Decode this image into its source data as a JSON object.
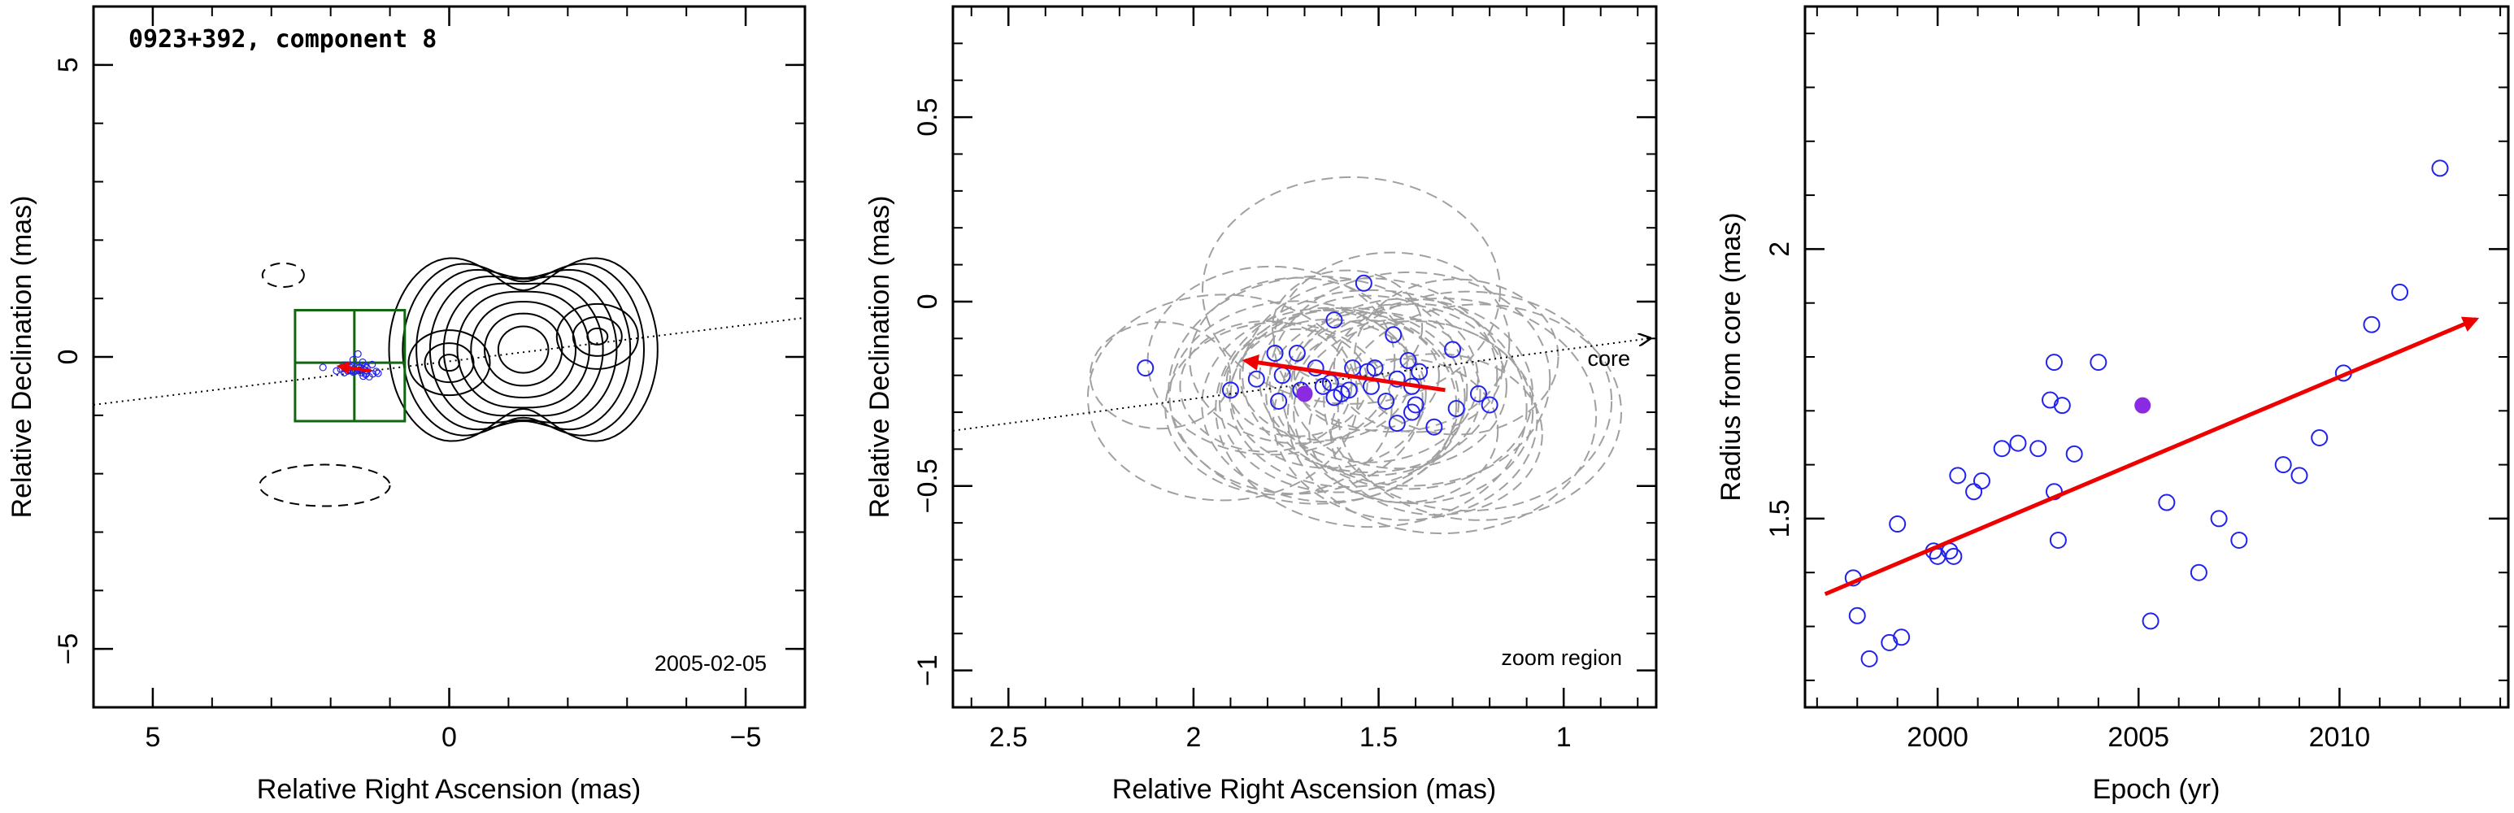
{
  "chart_data": [
    {
      "type": "scatter",
      "panel": "overview",
      "title": "0923+392, component 8",
      "date_label": "2005-02-05",
      "xlabel": "Relative Right Ascension (mas)",
      "ylabel": "Relative Declination (mas)",
      "xlim": [
        6,
        -6
      ],
      "ylim": [
        -6,
        6
      ],
      "xticks": [
        5,
        0,
        -5
      ],
      "yticks": [
        5,
        0,
        -5
      ],
      "xtick_labels": [
        "5",
        "0",
        "−5"
      ],
      "ytick_labels": [
        "5",
        "0",
        "−5"
      ],
      "core_line": {
        "points": [
          [
            6,
            -0.82
          ],
          [
            -6,
            0.67
          ]
        ],
        "style": "dotted"
      },
      "contours": {
        "peak_a": [
          0.0,
          -0.1
        ],
        "peak_b": [
          -2.5,
          0.35
        ],
        "levels": 9,
        "negative_contours": [
          {
            "center": [
              2.8,
              1.4
            ],
            "radius_x": 0.35,
            "radius_y": 0.2
          },
          {
            "center": [
              2.1,
              -2.2
            ],
            "radius_x": 1.1,
            "radius_y": 0.35
          }
        ]
      },
      "zoom_box": {
        "x": [
          2.6,
          0.75
        ],
        "y": [
          -1.1,
          0.8
        ]
      },
      "points_center": [
        1.6,
        -0.22
      ],
      "arrow": {
        "from": [
          1.32,
          -0.24
        ],
        "to": [
          1.86,
          -0.16
        ]
      }
    },
    {
      "type": "scatter",
      "panel": "zoom",
      "xlabel": "Relative Right Ascension (mas)",
      "ylabel": "Relative Declination (mas)",
      "xlim": [
        2.65,
        0.75
      ],
      "ylim": [
        -1.1,
        0.8
      ],
      "xticks": [
        2.5,
        2,
        1.5,
        1
      ],
      "yticks": [
        0.5,
        0,
        -0.5,
        -1
      ],
      "xtick_labels": [
        "2.5",
        "2",
        "1.5",
        "1"
      ],
      "ytick_labels": [
        "0.5",
        "0",
        "−0.5",
        "−1"
      ],
      "annotations": {
        "core": "core",
        "zoom": "zoom region"
      },
      "core_line": {
        "from": [
          2.65,
          -0.35
        ],
        "to": [
          0.77,
          -0.1
        ],
        "style": "dotted"
      },
      "points": [
        [
          2.13,
          -0.18
        ],
        [
          1.54,
          0.05
        ],
        [
          1.62,
          -0.05
        ],
        [
          1.46,
          -0.09
        ],
        [
          1.3,
          -0.13
        ],
        [
          1.72,
          -0.14
        ],
        [
          1.78,
          -0.14
        ],
        [
          1.42,
          -0.16
        ],
        [
          1.51,
          -0.18
        ],
        [
          1.53,
          -0.19
        ],
        [
          1.57,
          -0.18
        ],
        [
          1.67,
          -0.18
        ],
        [
          1.39,
          -0.19
        ],
        [
          1.76,
          -0.2
        ],
        [
          1.83,
          -0.21
        ],
        [
          1.45,
          -0.21
        ],
        [
          1.63,
          -0.22
        ],
        [
          1.52,
          -0.23
        ],
        [
          1.41,
          -0.23
        ],
        [
          1.65,
          -0.23
        ],
        [
          1.9,
          -0.24
        ],
        [
          1.58,
          -0.24
        ],
        [
          1.71,
          -0.24
        ],
        [
          1.6,
          -0.25
        ],
        [
          1.23,
          -0.25
        ],
        [
          1.62,
          -0.26
        ],
        [
          1.77,
          -0.27
        ],
        [
          1.48,
          -0.27
        ],
        [
          1.2,
          -0.28
        ],
        [
          1.4,
          -0.28
        ],
        [
          1.29,
          -0.29
        ],
        [
          1.41,
          -0.3
        ],
        [
          1.45,
          -0.33
        ],
        [
          1.35,
          -0.34
        ]
      ],
      "highlight_point": [
        1.7,
        -0.25
      ],
      "arrow": {
        "from": [
          1.32,
          -0.24
        ],
        "to": [
          1.86,
          -0.16
        ]
      },
      "error_ellipses": 34
    },
    {
      "type": "scatter",
      "panel": "radius_vs_epoch",
      "xlabel": "Epoch (yr)",
      "ylabel": "Radius from core (mas)",
      "xlim": [
        1996.7,
        2014.2
      ],
      "ylim": [
        1.15,
        2.45
      ],
      "xticks": [
        2000,
        2005,
        2010
      ],
      "yticks": [
        1.5,
        2
      ],
      "xtick_labels": [
        "2000",
        "2005",
        "2010"
      ],
      "ytick_labels": [
        "1.5",
        "2"
      ],
      "x": [
        1997.9,
        1998.0,
        1998.3,
        1998.8,
        1999.0,
        1999.1,
        1999.9,
        2000.0,
        2000.3,
        2000.4,
        2000.5,
        2000.9,
        2001.1,
        2001.6,
        2002.0,
        2002.5,
        2002.8,
        2002.9,
        2002.9,
        2003.0,
        2003.1,
        2003.4,
        2004.0,
        2005.3,
        2005.7,
        2006.5,
        2007.0,
        2007.5,
        2008.6,
        2009.0,
        2009.5,
        2010.1,
        2010.8,
        2011.5,
        2012.5
      ],
      "y": [
        1.39,
        1.32,
        1.24,
        1.27,
        1.49,
        1.28,
        1.44,
        1.43,
        1.44,
        1.43,
        1.58,
        1.55,
        1.57,
        1.63,
        1.64,
        1.63,
        1.72,
        1.79,
        1.55,
        1.46,
        1.71,
        1.62,
        1.79,
        1.31,
        1.53,
        1.4,
        1.5,
        1.46,
        1.6,
        1.58,
        1.65,
        1.77,
        1.86,
        1.92,
        2.15
      ],
      "highlight_point": [
        2005.1,
        1.71
      ],
      "fit_arrow": {
        "from": [
          1997.2,
          1.36
        ],
        "to": [
          2013.4,
          1.87
        ]
      }
    }
  ],
  "colors": {
    "points": "#2222ee",
    "highlight": "#8a2be2",
    "arrow": "#ee0000",
    "zoom_box": "#116611",
    "ellipse": "#a0a0a0",
    "axis": "#000000"
  }
}
